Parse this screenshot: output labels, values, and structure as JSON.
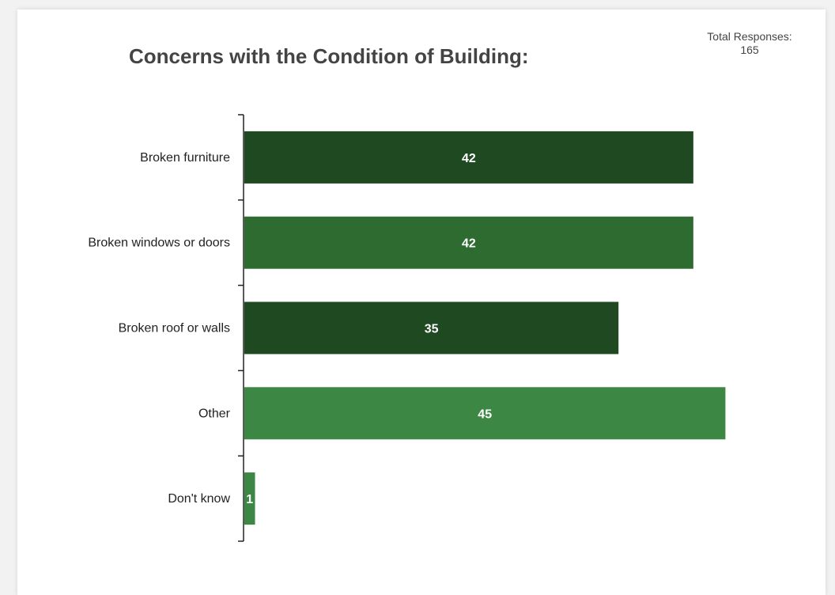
{
  "chart_data": {
    "type": "bar",
    "orientation": "horizontal",
    "title": "Concerns with the Condition of Building:",
    "total_responses_label": "Total Responses:",
    "total_responses_value": "165",
    "categories": [
      "Broken furniture",
      "Broken windows or doors",
      "Broken roof or walls",
      "Other",
      "Don't know"
    ],
    "values": [
      42,
      42,
      35,
      45,
      1
    ],
    "bar_colors": [
      "#1f4a21",
      "#2e6b30",
      "#1f4a21",
      "#3c8743",
      "#3c8743"
    ],
    "label_color": "#ffffff",
    "xlim": [
      0,
      48
    ],
    "grid": false,
    "legend": "none"
  }
}
